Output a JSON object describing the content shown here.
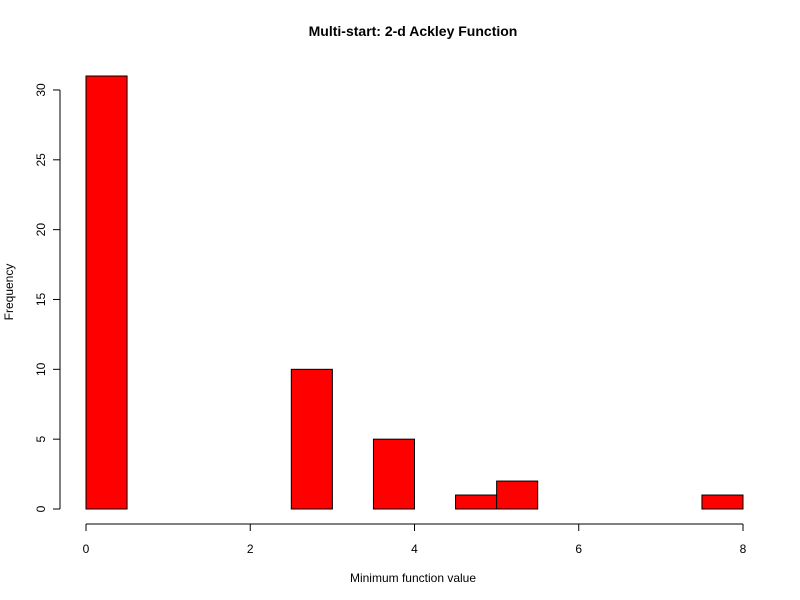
{
  "chart_data": {
    "type": "bar",
    "title": "Multi-start: 2-d Ackley Function",
    "xlabel": "Minimum function value",
    "ylabel": "Frequency",
    "bin_width": 0.5,
    "bins": [
      {
        "x0": 0.0,
        "x1": 0.5,
        "count": 31
      },
      {
        "x0": 0.5,
        "x1": 1.0,
        "count": 0
      },
      {
        "x0": 1.0,
        "x1": 1.5,
        "count": 0
      },
      {
        "x0": 1.5,
        "x1": 2.0,
        "count": 0
      },
      {
        "x0": 2.0,
        "x1": 2.5,
        "count": 0
      },
      {
        "x0": 2.5,
        "x1": 3.0,
        "count": 10
      },
      {
        "x0": 3.0,
        "x1": 3.5,
        "count": 0
      },
      {
        "x0": 3.5,
        "x1": 4.0,
        "count": 5
      },
      {
        "x0": 4.0,
        "x1": 4.5,
        "count": 0
      },
      {
        "x0": 4.5,
        "x1": 5.0,
        "count": 1
      },
      {
        "x0": 5.0,
        "x1": 5.5,
        "count": 2
      },
      {
        "x0": 5.5,
        "x1": 6.0,
        "count": 0
      },
      {
        "x0": 6.0,
        "x1": 6.5,
        "count": 0
      },
      {
        "x0": 6.5,
        "x1": 7.0,
        "count": 0
      },
      {
        "x0": 7.0,
        "x1": 7.5,
        "count": 0
      },
      {
        "x0": 7.5,
        "x1": 8.0,
        "count": 1
      }
    ],
    "xlim": [
      0,
      8
    ],
    "ylim": [
      0,
      31
    ],
    "x_ticks": [
      0,
      2,
      4,
      6,
      8
    ],
    "y_ticks": [
      0,
      5,
      10,
      15,
      20,
      25,
      30
    ],
    "bar_color": "#ff0000",
    "grid": false,
    "legend": "none"
  }
}
